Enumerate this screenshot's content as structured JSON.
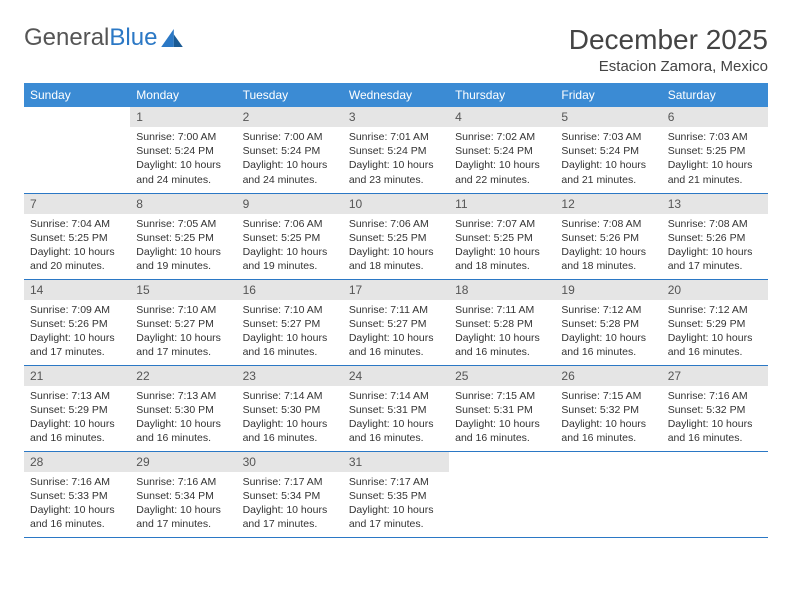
{
  "brand": {
    "word1": "General",
    "word2": "Blue"
  },
  "title": "December 2025",
  "subtitle": "Estacion Zamora, Mexico",
  "header_bg": "#3b8bd4",
  "header_fg": "#ffffff",
  "daynum_bg": "#e5e5e5",
  "row_border": "#2b78c5",
  "dayNames": [
    "Sunday",
    "Monday",
    "Tuesday",
    "Wednesday",
    "Thursday",
    "Friday",
    "Saturday"
  ],
  "firstWeekday": 1,
  "daysInMonth": 31,
  "days": {
    "1": {
      "sunrise": "7:00 AM",
      "sunset": "5:24 PM",
      "daylight": "10 hours and 24 minutes."
    },
    "2": {
      "sunrise": "7:00 AM",
      "sunset": "5:24 PM",
      "daylight": "10 hours and 24 minutes."
    },
    "3": {
      "sunrise": "7:01 AM",
      "sunset": "5:24 PM",
      "daylight": "10 hours and 23 minutes."
    },
    "4": {
      "sunrise": "7:02 AM",
      "sunset": "5:24 PM",
      "daylight": "10 hours and 22 minutes."
    },
    "5": {
      "sunrise": "7:03 AM",
      "sunset": "5:24 PM",
      "daylight": "10 hours and 21 minutes."
    },
    "6": {
      "sunrise": "7:03 AM",
      "sunset": "5:25 PM",
      "daylight": "10 hours and 21 minutes."
    },
    "7": {
      "sunrise": "7:04 AM",
      "sunset": "5:25 PM",
      "daylight": "10 hours and 20 minutes."
    },
    "8": {
      "sunrise": "7:05 AM",
      "sunset": "5:25 PM",
      "daylight": "10 hours and 19 minutes."
    },
    "9": {
      "sunrise": "7:06 AM",
      "sunset": "5:25 PM",
      "daylight": "10 hours and 19 minutes."
    },
    "10": {
      "sunrise": "7:06 AM",
      "sunset": "5:25 PM",
      "daylight": "10 hours and 18 minutes."
    },
    "11": {
      "sunrise": "7:07 AM",
      "sunset": "5:25 PM",
      "daylight": "10 hours and 18 minutes."
    },
    "12": {
      "sunrise": "7:08 AM",
      "sunset": "5:26 PM",
      "daylight": "10 hours and 18 minutes."
    },
    "13": {
      "sunrise": "7:08 AM",
      "sunset": "5:26 PM",
      "daylight": "10 hours and 17 minutes."
    },
    "14": {
      "sunrise": "7:09 AM",
      "sunset": "5:26 PM",
      "daylight": "10 hours and 17 minutes."
    },
    "15": {
      "sunrise": "7:10 AM",
      "sunset": "5:27 PM",
      "daylight": "10 hours and 17 minutes."
    },
    "16": {
      "sunrise": "7:10 AM",
      "sunset": "5:27 PM",
      "daylight": "10 hours and 16 minutes."
    },
    "17": {
      "sunrise": "7:11 AM",
      "sunset": "5:27 PM",
      "daylight": "10 hours and 16 minutes."
    },
    "18": {
      "sunrise": "7:11 AM",
      "sunset": "5:28 PM",
      "daylight": "10 hours and 16 minutes."
    },
    "19": {
      "sunrise": "7:12 AM",
      "sunset": "5:28 PM",
      "daylight": "10 hours and 16 minutes."
    },
    "20": {
      "sunrise": "7:12 AM",
      "sunset": "5:29 PM",
      "daylight": "10 hours and 16 minutes."
    },
    "21": {
      "sunrise": "7:13 AM",
      "sunset": "5:29 PM",
      "daylight": "10 hours and 16 minutes."
    },
    "22": {
      "sunrise": "7:13 AM",
      "sunset": "5:30 PM",
      "daylight": "10 hours and 16 minutes."
    },
    "23": {
      "sunrise": "7:14 AM",
      "sunset": "5:30 PM",
      "daylight": "10 hours and 16 minutes."
    },
    "24": {
      "sunrise": "7:14 AM",
      "sunset": "5:31 PM",
      "daylight": "10 hours and 16 minutes."
    },
    "25": {
      "sunrise": "7:15 AM",
      "sunset": "5:31 PM",
      "daylight": "10 hours and 16 minutes."
    },
    "26": {
      "sunrise": "7:15 AM",
      "sunset": "5:32 PM",
      "daylight": "10 hours and 16 minutes."
    },
    "27": {
      "sunrise": "7:16 AM",
      "sunset": "5:32 PM",
      "daylight": "10 hours and 16 minutes."
    },
    "28": {
      "sunrise": "7:16 AM",
      "sunset": "5:33 PM",
      "daylight": "10 hours and 16 minutes."
    },
    "29": {
      "sunrise": "7:16 AM",
      "sunset": "5:34 PM",
      "daylight": "10 hours and 17 minutes."
    },
    "30": {
      "sunrise": "7:17 AM",
      "sunset": "5:34 PM",
      "daylight": "10 hours and 17 minutes."
    },
    "31": {
      "sunrise": "7:17 AM",
      "sunset": "5:35 PM",
      "daylight": "10 hours and 17 minutes."
    }
  },
  "labels": {
    "sunrise": "Sunrise:",
    "sunset": "Sunset:",
    "daylight": "Daylight:"
  }
}
